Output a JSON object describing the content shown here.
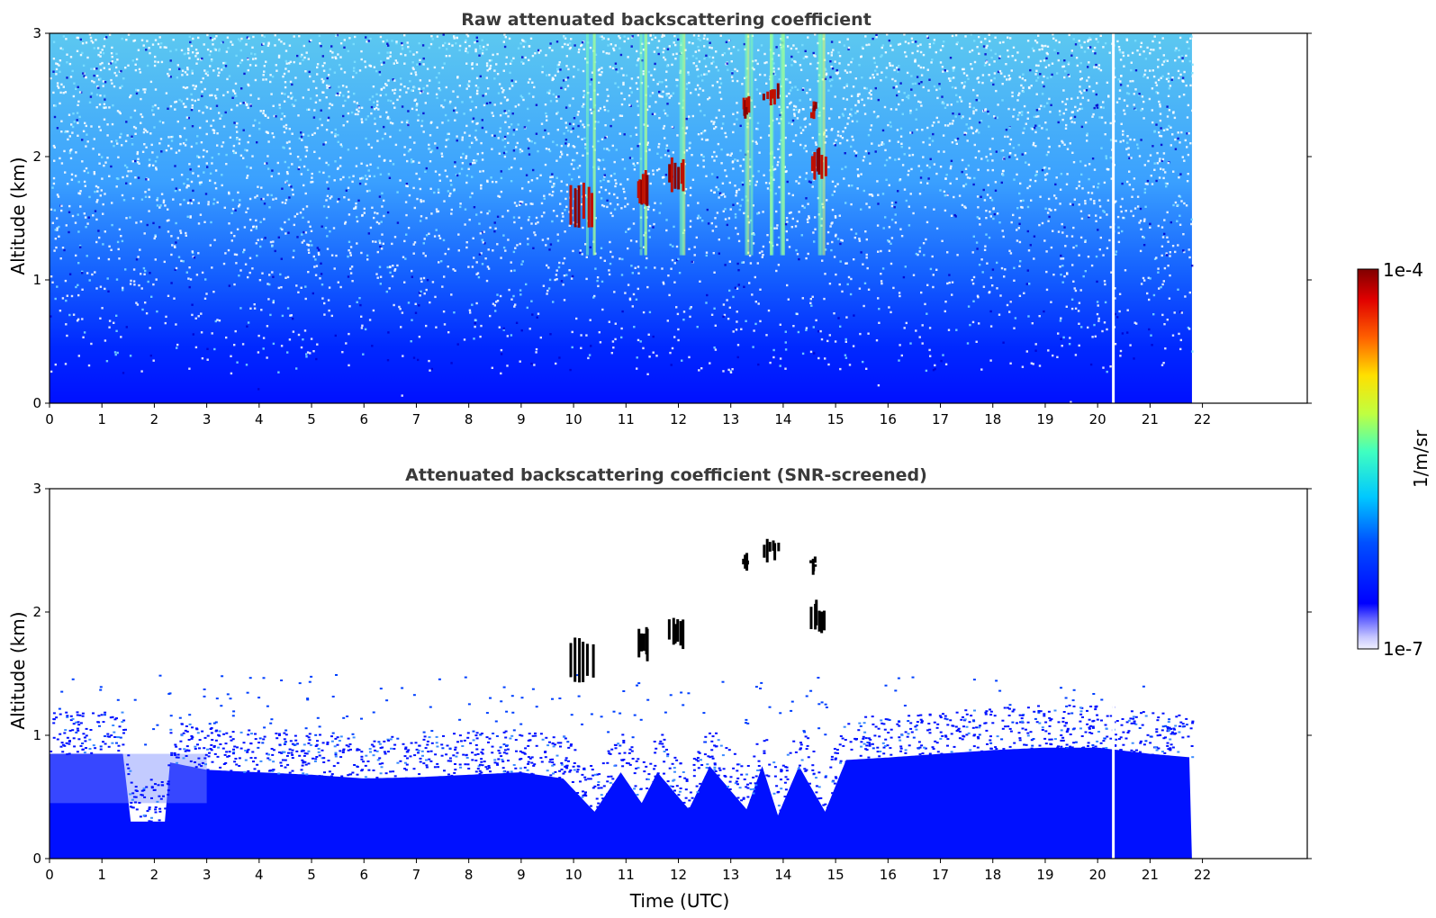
{
  "chart_data": [
    {
      "type": "heatmap",
      "title": "Raw attenuated backscattering coefficient",
      "xlabel": "",
      "ylabel": "Altitude (km)",
      "xlim": [
        0,
        24
      ],
      "ylim": [
        0,
        3
      ],
      "x_ticks": [
        "0",
        "1",
        "2",
        "3",
        "4",
        "5",
        "6",
        "7",
        "8",
        "9",
        "10",
        "11",
        "12",
        "13",
        "14",
        "15",
        "16",
        "17",
        "18",
        "19",
        "20",
        "21",
        "22"
      ],
      "y_ticks": [
        "0",
        "1",
        "2",
        "3"
      ],
      "data_end_hour": 21.8,
      "data_gap_hour": 20.3,
      "boundary_layer_top_km": 0.6,
      "cloud_features": [
        {
          "time_start": 9.9,
          "time_end": 10.4,
          "alt_min_km": 1.4,
          "alt_max_km": 1.8
        },
        {
          "time_start": 11.2,
          "time_end": 11.4,
          "alt_min_km": 1.6,
          "alt_max_km": 1.9
        },
        {
          "time_start": 11.8,
          "time_end": 12.1,
          "alt_min_km": 1.7,
          "alt_max_km": 2.0
        },
        {
          "time_start": 13.2,
          "time_end": 13.3,
          "alt_min_km": 2.3,
          "alt_max_km": 2.5
        },
        {
          "time_start": 13.6,
          "time_end": 13.9,
          "alt_min_km": 2.4,
          "alt_max_km": 2.6
        },
        {
          "time_start": 14.5,
          "time_end": 14.8,
          "alt_min_km": 1.8,
          "alt_max_km": 2.1
        },
        {
          "time_start": 14.5,
          "time_end": 14.6,
          "alt_min_km": 2.3,
          "alt_max_km": 2.45
        }
      ],
      "noise_columns_hours": [
        10.3,
        11.3,
        12.0,
        13.3,
        13.7,
        14.0,
        14.7
      ]
    },
    {
      "type": "heatmap",
      "title": "Attenuated backscattering coefficient (SNR-screened)",
      "xlabel": "Time (UTC)",
      "ylabel": "Altitude (km)",
      "xlim": [
        0,
        24
      ],
      "ylim": [
        0,
        3
      ],
      "x_ticks": [
        "0",
        "1",
        "2",
        "3",
        "4",
        "5",
        "6",
        "7",
        "8",
        "9",
        "10",
        "11",
        "12",
        "13",
        "14",
        "15",
        "16",
        "17",
        "18",
        "19",
        "20",
        "21",
        "22"
      ],
      "y_ticks": [
        "0",
        "1",
        "2",
        "3"
      ],
      "data_end_hour": 21.8,
      "data_gap_hour": 20.3,
      "screened_layer_top_km": [
        [
          0,
          0.85
        ],
        [
          1.4,
          0.85
        ],
        [
          1.55,
          0.3
        ],
        [
          2.2,
          0.3
        ],
        [
          2.3,
          0.78
        ],
        [
          3,
          0.72
        ],
        [
          4,
          0.7
        ],
        [
          5,
          0.68
        ],
        [
          6,
          0.65
        ],
        [
          7,
          0.66
        ],
        [
          8,
          0.68
        ],
        [
          9,
          0.7
        ],
        [
          9.8,
          0.65
        ],
        [
          10.4,
          0.38
        ],
        [
          10.9,
          0.7
        ],
        [
          11.3,
          0.45
        ],
        [
          11.6,
          0.7
        ],
        [
          12.2,
          0.4
        ],
        [
          12.6,
          0.75
        ],
        [
          13.3,
          0.4
        ],
        [
          13.6,
          0.75
        ],
        [
          13.9,
          0.35
        ],
        [
          14.3,
          0.75
        ],
        [
          14.8,
          0.38
        ],
        [
          15.2,
          0.8
        ],
        [
          16,
          0.82
        ],
        [
          17,
          0.85
        ],
        [
          18,
          0.88
        ],
        [
          19,
          0.9
        ],
        [
          20,
          0.9
        ],
        [
          21,
          0.85
        ],
        [
          21.8,
          0.82
        ]
      ],
      "cloud_features": [
        {
          "time_start": 9.9,
          "time_end": 10.4,
          "alt_min_km": 1.4,
          "alt_max_km": 1.8
        },
        {
          "time_start": 11.2,
          "time_end": 11.4,
          "alt_min_km": 1.6,
          "alt_max_km": 1.9
        },
        {
          "time_start": 11.8,
          "time_end": 12.1,
          "alt_min_km": 1.7,
          "alt_max_km": 2.0
        },
        {
          "time_start": 13.2,
          "time_end": 13.3,
          "alt_min_km": 2.3,
          "alt_max_km": 2.5
        },
        {
          "time_start": 13.6,
          "time_end": 13.9,
          "alt_min_km": 2.4,
          "alt_max_km": 2.6
        },
        {
          "time_start": 14.5,
          "time_end": 14.8,
          "alt_min_km": 1.8,
          "alt_max_km": 2.1
        },
        {
          "time_start": 14.5,
          "time_end": 14.6,
          "alt_min_km": 2.3,
          "alt_max_km": 2.45
        }
      ]
    }
  ],
  "colorbar": {
    "label": "1/m/sr",
    "max_label": "1e-4",
    "min_label": "1e-7",
    "colormap": "jet",
    "scale": "log"
  },
  "colors": {
    "low_blue": "#0000ff",
    "cloud_red": "#8b0000",
    "title_gray": "#3a3a3a"
  }
}
